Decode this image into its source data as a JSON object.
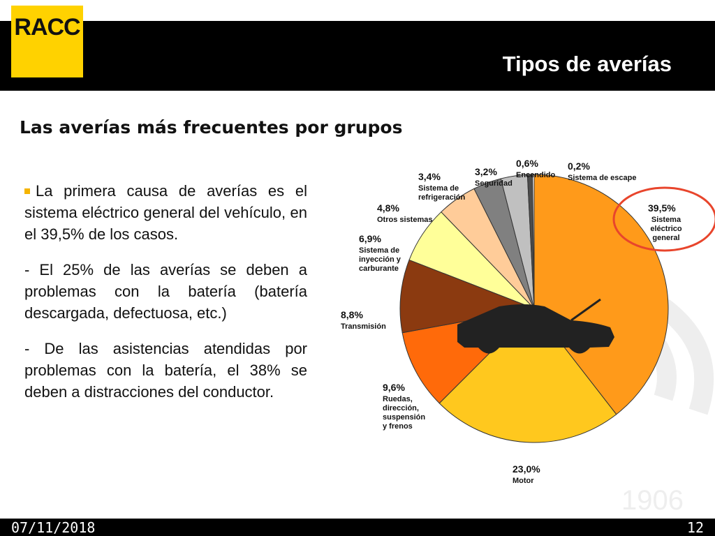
{
  "header": {
    "logo": "RACC",
    "title": "Tipos de averías",
    "subtitle": "Las averías más frecuentes por grupos"
  },
  "body": {
    "p1": "La primera causa de averías es el sistema eléctrico general del vehículo, en el 39,5% de los casos.",
    "p2": "- El 25% de las averías se deben a problemas con la batería (batería descargada, defectuosa, etc.)",
    "p3": "- De las asistencias atendidas por problemas con la batería, el 38% se deben a distracciones del conductor."
  },
  "watermark": {
    "year": "1906"
  },
  "footer": {
    "date": "07/11/2018",
    "page": "12"
  },
  "colors": {
    "brand_yellow": "#ffd200",
    "highlight_circle": "#e8452c"
  },
  "chart_data": {
    "type": "pie",
    "start": "12 o'clock, clockwise",
    "slices": [
      {
        "pct": "39,5%",
        "value": 39.5,
        "lines": [
          "Sistema",
          "eléctrico",
          "general"
        ],
        "color": "#ff9a1a"
      },
      {
        "pct": "23,0%",
        "value": 23.0,
        "lines": [
          "Motor"
        ],
        "color": "#ffc81e"
      },
      {
        "pct": "9,6%",
        "value": 9.6,
        "lines": [
          "Ruedas,",
          "dirección,",
          "suspensión",
          "y frenos"
        ],
        "color": "#ff6a0a"
      },
      {
        "pct": "8,8%",
        "value": 8.8,
        "lines": [
          "Transmisión"
        ],
        "color": "#8b3a10"
      },
      {
        "pct": "6,9%",
        "value": 6.9,
        "lines": [
          "Sistema de",
          "inyección y",
          "carburante"
        ],
        "color": "#ffff99"
      },
      {
        "pct": "4,8%",
        "value": 4.8,
        "lines": [
          "Otros sistemas"
        ],
        "color": "#ffcc99"
      },
      {
        "pct": "3,4%",
        "value": 3.4,
        "lines": [
          "Sistema de",
          "refrigeración"
        ],
        "color": "#808080"
      },
      {
        "pct": "3,2%",
        "value": 3.2,
        "lines": [
          "Seguridad"
        ],
        "color": "#c0c0c0"
      },
      {
        "pct": "0,6%",
        "value": 0.6,
        "lines": [
          "Encendido"
        ],
        "color": "#4d4d4d"
      },
      {
        "pct": "0,2%",
        "value": 0.2,
        "lines": [
          "Sistema de escape"
        ],
        "color": "#ffffff"
      }
    ]
  }
}
